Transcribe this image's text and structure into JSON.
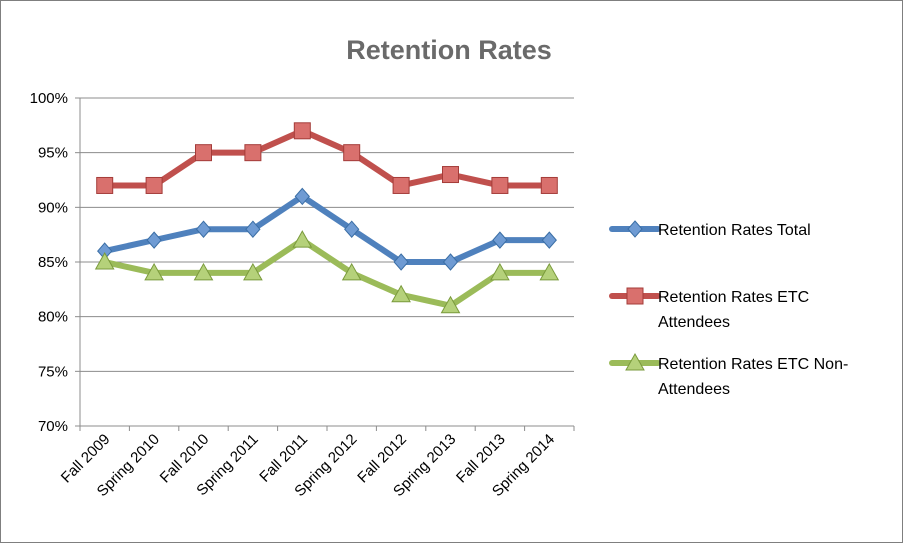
{
  "chart_data": {
    "type": "line",
    "title": "Retention Rates",
    "xlabel": "",
    "ylabel": "",
    "categories": [
      "Fall 2009",
      "Spring 2010",
      "Fall 2010",
      "Spring 2011",
      "Fall 2011",
      "Spring 2012",
      "Fall 2012",
      "Spring 2013",
      "Fall 2013",
      "Spring 2014"
    ],
    "ylim": [
      70,
      100
    ],
    "yticks": [
      "70%",
      "75%",
      "80%",
      "85%",
      "90%",
      "95%",
      "100%"
    ],
    "grid": true,
    "legend_position": "right",
    "series": [
      {
        "name": "Retention Rates Total",
        "legend_lines": [
          "Retention Rates Total"
        ],
        "color": "#4f81bd",
        "marker": "diamond",
        "values": [
          86,
          87,
          88,
          88,
          91,
          88,
          85,
          85,
          87,
          87
        ]
      },
      {
        "name": "Retention Rates ETC Attendees",
        "legend_lines": [
          "Retention Rates ETC",
          "Attendees"
        ],
        "color": "#c0504d",
        "marker": "square",
        "values": [
          92,
          92,
          95,
          95,
          97,
          95,
          92,
          93,
          92,
          92
        ]
      },
      {
        "name": "Retention Rates ETC Non-Attendees",
        "legend_lines": [
          "Retention Rates ETC Non-",
          "Attendees"
        ],
        "color": "#9bbb59",
        "marker": "triangle",
        "values": [
          85,
          84,
          84,
          84,
          87,
          84,
          82,
          81,
          84,
          84
        ]
      }
    ]
  }
}
